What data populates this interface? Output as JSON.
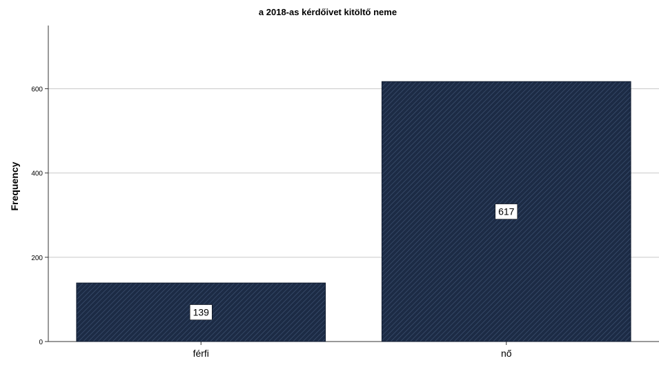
{
  "chart_data": {
    "type": "bar",
    "title": "a 2018-as kérdőivet kitöltő neme",
    "xlabel": "",
    "ylabel": "Frequency",
    "categories": [
      "férfi",
      "nő"
    ],
    "values": [
      139,
      617
    ],
    "data_labels": [
      "139",
      "617"
    ],
    "ylim": [
      0,
      750
    ],
    "yticks": [
      0,
      200,
      400,
      600
    ],
    "grid": true,
    "bar_color": "#1c2b45",
    "bar_pattern": "diagonal-hatch",
    "legend": "none"
  }
}
